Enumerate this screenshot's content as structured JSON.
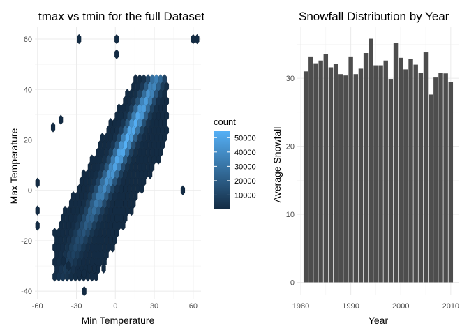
{
  "chart_data": [
    {
      "type": "heatmap",
      "subtype": "hexbin",
      "title": "tmax vs tmin for the full Dataset",
      "xlabel": "Min Temperature",
      "ylabel": "Max Temperature",
      "xlim": [
        -62,
        66
      ],
      "ylim": [
        -43,
        65
      ],
      "x_ticks": [
        -60,
        -30,
        0,
        30,
        60
      ],
      "y_ticks": [
        -40,
        -20,
        0,
        20,
        40,
        60
      ],
      "x_tick_labels": [
        "-60",
        "-30",
        "0",
        "30",
        "60"
      ],
      "y_tick_labels": [
        "-40",
        "-20",
        "0",
        "20",
        "40",
        "60"
      ],
      "grid": true,
      "legend": {
        "title": "count",
        "placement": "right",
        "breaks": [
          10000,
          20000,
          30000,
          40000,
          50000
        ],
        "labels": [
          "10000",
          "20000",
          "30000",
          "40000",
          "50000"
        ],
        "range": [
          1,
          55000
        ],
        "low_color": "#132B43",
        "high_color": "#56B1F7"
      },
      "density_model": {
        "ridge_slope": 1.05,
        "ridge_intercept": 10.5,
        "ridge_sd": 4.2,
        "peak_x": 10,
        "spread_x": 22,
        "max_count": 55000
      },
      "outlier_points": [
        [
          -28,
          60
        ],
        [
          60,
          60
        ],
        [
          63,
          60
        ],
        [
          1,
          60
        ],
        [
          1,
          54
        ],
        [
          -60,
          3
        ],
        [
          -60,
          -8
        ],
        [
          -60,
          -14
        ],
        [
          -48,
          25
        ],
        [
          -42,
          28
        ],
        [
          52,
          0
        ],
        [
          -24,
          -40
        ],
        [
          -20,
          -31
        ],
        [
          -16,
          -31
        ],
        [
          -9,
          -31
        ],
        [
          -40,
          -28
        ],
        [
          -36,
          -30
        ],
        [
          -28,
          -33
        ],
        [
          -24,
          -33
        ]
      ]
    },
    {
      "type": "bar",
      "title": "Snowfall Distribution by Year",
      "xlabel": "Year",
      "ylabel": "Average Snowfall",
      "x": [
        1981,
        1982,
        1983,
        1984,
        1985,
        1986,
        1987,
        1988,
        1989,
        1990,
        1991,
        1992,
        1993,
        1994,
        1995,
        1996,
        1997,
        1998,
        1999,
        2000,
        2001,
        2002,
        2003,
        2004,
        2005,
        2006,
        2007,
        2008,
        2009,
        2010
      ],
      "values": [
        31.0,
        33.2,
        32.2,
        32.6,
        33.5,
        31.6,
        32.1,
        30.6,
        30.4,
        33.2,
        30.6,
        31.4,
        33.7,
        35.8,
        31.9,
        31.9,
        32.6,
        29.9,
        35.2,
        33.0,
        31.3,
        32.8,
        32.0,
        30.8,
        33.8,
        27.6,
        30.1,
        30.8,
        30.7,
        29.4
      ],
      "xlim": [
        1979.3,
        2011.7
      ],
      "ylim": [
        -1.8,
        37.6
      ],
      "x_ticks": [
        1980,
        1990,
        2000,
        2010
      ],
      "y_ticks": [
        0,
        10,
        20,
        30
      ],
      "x_tick_labels": [
        "1980",
        "1990",
        "2000",
        "2010"
      ],
      "y_tick_labels": [
        "0",
        "10",
        "20",
        "30"
      ],
      "bar_color": "#4d4d4d",
      "grid": true
    }
  ]
}
